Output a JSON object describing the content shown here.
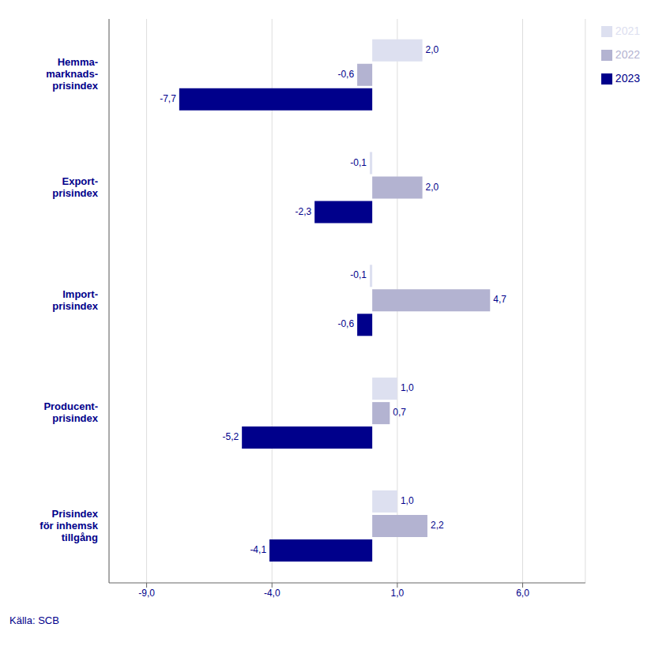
{
  "chart_data": {
    "type": "bar",
    "orientation": "horizontal",
    "categories": [
      "Hemma-\nmarknads-\nprisindex",
      "Export-\nprisindex",
      "Import-\nprisindex",
      "Producent-\nprisindex",
      "Prisindex\nför inhemsk\ntillgång"
    ],
    "series": [
      {
        "name": "2021",
        "color": "#dde0f0",
        "values": [
          2.0,
          -0.1,
          -0.1,
          1.0,
          1.0
        ],
        "value_labels": [
          "2,0",
          "-0,1",
          "-0,1",
          "1,0",
          "1,0"
        ]
      },
      {
        "name": "2022",
        "color": "#b3b3d1",
        "values": [
          -0.6,
          2.0,
          4.7,
          0.7,
          2.2
        ],
        "value_labels": [
          "-0,6",
          "2,0",
          "4,7",
          "0,7",
          "2,2"
        ]
      },
      {
        "name": "2023",
        "color": "#00008b",
        "values": [
          -7.7,
          -2.3,
          -0.6,
          -5.2,
          -4.1
        ],
        "value_labels": [
          "-7,7",
          "-2,3",
          "-0,6",
          "-5,2",
          "-4,1"
        ]
      }
    ],
    "xlim": [
      -10.5,
      8.5
    ],
    "xticks": [
      {
        "value": -9.0,
        "label": "-9,0"
      },
      {
        "value": -4.0,
        "label": "-4,0"
      },
      {
        "value": 1.0,
        "label": "1,0"
      },
      {
        "value": 6.0,
        "label": "6,0"
      }
    ],
    "grid": true,
    "legend": "right",
    "data_labels": true,
    "annotations": [
      "Källa: SCB"
    ]
  }
}
